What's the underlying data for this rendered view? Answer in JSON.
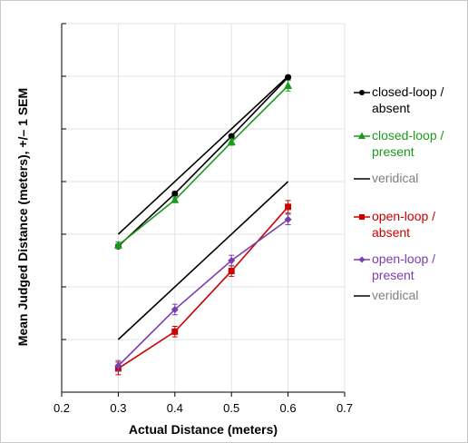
{
  "chart_data": {
    "type": "line",
    "xlabel": "Actual Distance (meters)",
    "ylabel": "Mean Judged Distance (meters), +/– 1 SEM",
    "xlim": [
      0.2,
      0.7
    ],
    "x_ticks": [
      "0.2",
      "0.3",
      "0.4",
      "0.5",
      "0.6",
      "0.7"
    ],
    "ylim": [
      0,
      0.7
    ],
    "y_tick_labels_shown": false,
    "grid": true,
    "legend_position": "right",
    "series": [
      {
        "name": "closed-loop / absent",
        "color": "#000000",
        "marker": "circle",
        "x": [
          0.3,
          0.4,
          0.5,
          0.6
        ],
        "y": [
          0.277,
          0.377,
          0.486,
          0.598
        ],
        "err": [
          0.004,
          0.004,
          0.003,
          0.003
        ]
      },
      {
        "name": "closed-loop / present",
        "color": "#1a9a1a",
        "marker": "triangle",
        "x": [
          0.3,
          0.4,
          0.5,
          0.6
        ],
        "y": [
          0.279,
          0.365,
          0.475,
          0.582
        ],
        "err": [
          0.006,
          0.004,
          0.006,
          0.01
        ]
      },
      {
        "name": "veridical",
        "color": "#000000",
        "label_color": "#808080",
        "marker": "none",
        "x": [
          0.3,
          0.6
        ],
        "y": [
          0.3,
          0.6
        ]
      },
      {
        "name": "open-loop / absent",
        "color": "#cc0000",
        "marker": "square",
        "x": [
          0.3,
          0.4,
          0.5,
          0.6
        ],
        "y": [
          0.045,
          0.115,
          0.23,
          0.352
        ],
        "err": [
          0.012,
          0.01,
          0.01,
          0.012
        ]
      },
      {
        "name": "open-loop / present",
        "color": "#7a3db0",
        "marker": "diamond",
        "x": [
          0.3,
          0.4,
          0.5,
          0.6
        ],
        "y": [
          0.05,
          0.157,
          0.25,
          0.328
        ],
        "err": [
          0.01,
          0.01,
          0.01,
          0.01
        ]
      },
      {
        "name": "veridical",
        "color": "#000000",
        "label_color": "#808080",
        "marker": "none",
        "x": [
          0.3,
          0.6
        ],
        "y": [
          0.1,
          0.4
        ]
      }
    ],
    "legend": [
      {
        "lines": [
          "closed-loop /",
          "absent"
        ],
        "color": "#000000",
        "marker": "circle",
        "line_color": "#000000"
      },
      {
        "lines": [
          "closed-loop /",
          "present"
        ],
        "color": "#1a9a1a",
        "marker": "triangle",
        "line_color": "#1a9a1a"
      },
      {
        "lines": [
          "veridical"
        ],
        "color": "#808080",
        "marker": "none",
        "line_color": "#000000"
      },
      {
        "lines": [
          "open-loop /",
          "absent"
        ],
        "color": "#cc0000",
        "marker": "square",
        "line_color": "#cc0000"
      },
      {
        "lines": [
          "open-loop /",
          "present"
        ],
        "color": "#7a3db0",
        "marker": "diamond",
        "line_color": "#7a3db0"
      },
      {
        "lines": [
          "veridical"
        ],
        "color": "#808080",
        "marker": "none",
        "line_color": "#000000"
      }
    ]
  }
}
